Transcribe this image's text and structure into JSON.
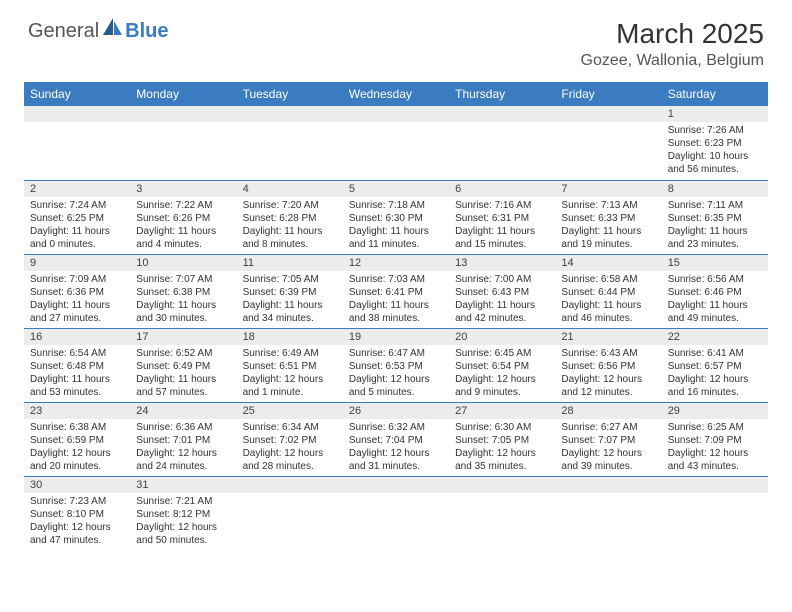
{
  "logo": {
    "general": "General",
    "blue": "Blue"
  },
  "title": "March 2025",
  "location": "Gozee, Wallonia, Belgium",
  "colors": {
    "header_bg": "#3b7bbf",
    "header_text": "#ffffff",
    "daynum_bg": "#ececec",
    "border": "#3b7bbf",
    "text": "#333333",
    "page_bg": "#ffffff"
  },
  "day_headers": [
    "Sunday",
    "Monday",
    "Tuesday",
    "Wednesday",
    "Thursday",
    "Friday",
    "Saturday"
  ],
  "weeks": [
    [
      {
        "n": "",
        "sr": "",
        "ss": "",
        "dl": ""
      },
      {
        "n": "",
        "sr": "",
        "ss": "",
        "dl": ""
      },
      {
        "n": "",
        "sr": "",
        "ss": "",
        "dl": ""
      },
      {
        "n": "",
        "sr": "",
        "ss": "",
        "dl": ""
      },
      {
        "n": "",
        "sr": "",
        "ss": "",
        "dl": ""
      },
      {
        "n": "",
        "sr": "",
        "ss": "",
        "dl": ""
      },
      {
        "n": "1",
        "sr": "Sunrise: 7:26 AM",
        "ss": "Sunset: 6:23 PM",
        "dl": "Daylight: 10 hours and 56 minutes."
      }
    ],
    [
      {
        "n": "2",
        "sr": "Sunrise: 7:24 AM",
        "ss": "Sunset: 6:25 PM",
        "dl": "Daylight: 11 hours and 0 minutes."
      },
      {
        "n": "3",
        "sr": "Sunrise: 7:22 AM",
        "ss": "Sunset: 6:26 PM",
        "dl": "Daylight: 11 hours and 4 minutes."
      },
      {
        "n": "4",
        "sr": "Sunrise: 7:20 AM",
        "ss": "Sunset: 6:28 PM",
        "dl": "Daylight: 11 hours and 8 minutes."
      },
      {
        "n": "5",
        "sr": "Sunrise: 7:18 AM",
        "ss": "Sunset: 6:30 PM",
        "dl": "Daylight: 11 hours and 11 minutes."
      },
      {
        "n": "6",
        "sr": "Sunrise: 7:16 AM",
        "ss": "Sunset: 6:31 PM",
        "dl": "Daylight: 11 hours and 15 minutes."
      },
      {
        "n": "7",
        "sr": "Sunrise: 7:13 AM",
        "ss": "Sunset: 6:33 PM",
        "dl": "Daylight: 11 hours and 19 minutes."
      },
      {
        "n": "8",
        "sr": "Sunrise: 7:11 AM",
        "ss": "Sunset: 6:35 PM",
        "dl": "Daylight: 11 hours and 23 minutes."
      }
    ],
    [
      {
        "n": "9",
        "sr": "Sunrise: 7:09 AM",
        "ss": "Sunset: 6:36 PM",
        "dl": "Daylight: 11 hours and 27 minutes."
      },
      {
        "n": "10",
        "sr": "Sunrise: 7:07 AM",
        "ss": "Sunset: 6:38 PM",
        "dl": "Daylight: 11 hours and 30 minutes."
      },
      {
        "n": "11",
        "sr": "Sunrise: 7:05 AM",
        "ss": "Sunset: 6:39 PM",
        "dl": "Daylight: 11 hours and 34 minutes."
      },
      {
        "n": "12",
        "sr": "Sunrise: 7:03 AM",
        "ss": "Sunset: 6:41 PM",
        "dl": "Daylight: 11 hours and 38 minutes."
      },
      {
        "n": "13",
        "sr": "Sunrise: 7:00 AM",
        "ss": "Sunset: 6:43 PM",
        "dl": "Daylight: 11 hours and 42 minutes."
      },
      {
        "n": "14",
        "sr": "Sunrise: 6:58 AM",
        "ss": "Sunset: 6:44 PM",
        "dl": "Daylight: 11 hours and 46 minutes."
      },
      {
        "n": "15",
        "sr": "Sunrise: 6:56 AM",
        "ss": "Sunset: 6:46 PM",
        "dl": "Daylight: 11 hours and 49 minutes."
      }
    ],
    [
      {
        "n": "16",
        "sr": "Sunrise: 6:54 AM",
        "ss": "Sunset: 6:48 PM",
        "dl": "Daylight: 11 hours and 53 minutes."
      },
      {
        "n": "17",
        "sr": "Sunrise: 6:52 AM",
        "ss": "Sunset: 6:49 PM",
        "dl": "Daylight: 11 hours and 57 minutes."
      },
      {
        "n": "18",
        "sr": "Sunrise: 6:49 AM",
        "ss": "Sunset: 6:51 PM",
        "dl": "Daylight: 12 hours and 1 minute."
      },
      {
        "n": "19",
        "sr": "Sunrise: 6:47 AM",
        "ss": "Sunset: 6:53 PM",
        "dl": "Daylight: 12 hours and 5 minutes."
      },
      {
        "n": "20",
        "sr": "Sunrise: 6:45 AM",
        "ss": "Sunset: 6:54 PM",
        "dl": "Daylight: 12 hours and 9 minutes."
      },
      {
        "n": "21",
        "sr": "Sunrise: 6:43 AM",
        "ss": "Sunset: 6:56 PM",
        "dl": "Daylight: 12 hours and 12 minutes."
      },
      {
        "n": "22",
        "sr": "Sunrise: 6:41 AM",
        "ss": "Sunset: 6:57 PM",
        "dl": "Daylight: 12 hours and 16 minutes."
      }
    ],
    [
      {
        "n": "23",
        "sr": "Sunrise: 6:38 AM",
        "ss": "Sunset: 6:59 PM",
        "dl": "Daylight: 12 hours and 20 minutes."
      },
      {
        "n": "24",
        "sr": "Sunrise: 6:36 AM",
        "ss": "Sunset: 7:01 PM",
        "dl": "Daylight: 12 hours and 24 minutes."
      },
      {
        "n": "25",
        "sr": "Sunrise: 6:34 AM",
        "ss": "Sunset: 7:02 PM",
        "dl": "Daylight: 12 hours and 28 minutes."
      },
      {
        "n": "26",
        "sr": "Sunrise: 6:32 AM",
        "ss": "Sunset: 7:04 PM",
        "dl": "Daylight: 12 hours and 31 minutes."
      },
      {
        "n": "27",
        "sr": "Sunrise: 6:30 AM",
        "ss": "Sunset: 7:05 PM",
        "dl": "Daylight: 12 hours and 35 minutes."
      },
      {
        "n": "28",
        "sr": "Sunrise: 6:27 AM",
        "ss": "Sunset: 7:07 PM",
        "dl": "Daylight: 12 hours and 39 minutes."
      },
      {
        "n": "29",
        "sr": "Sunrise: 6:25 AM",
        "ss": "Sunset: 7:09 PM",
        "dl": "Daylight: 12 hours and 43 minutes."
      }
    ],
    [
      {
        "n": "30",
        "sr": "Sunrise: 7:23 AM",
        "ss": "Sunset: 8:10 PM",
        "dl": "Daylight: 12 hours and 47 minutes."
      },
      {
        "n": "31",
        "sr": "Sunrise: 7:21 AM",
        "ss": "Sunset: 8:12 PM",
        "dl": "Daylight: 12 hours and 50 minutes."
      },
      {
        "n": "",
        "sr": "",
        "ss": "",
        "dl": ""
      },
      {
        "n": "",
        "sr": "",
        "ss": "",
        "dl": ""
      },
      {
        "n": "",
        "sr": "",
        "ss": "",
        "dl": ""
      },
      {
        "n": "",
        "sr": "",
        "ss": "",
        "dl": ""
      },
      {
        "n": "",
        "sr": "",
        "ss": "",
        "dl": ""
      }
    ]
  ]
}
